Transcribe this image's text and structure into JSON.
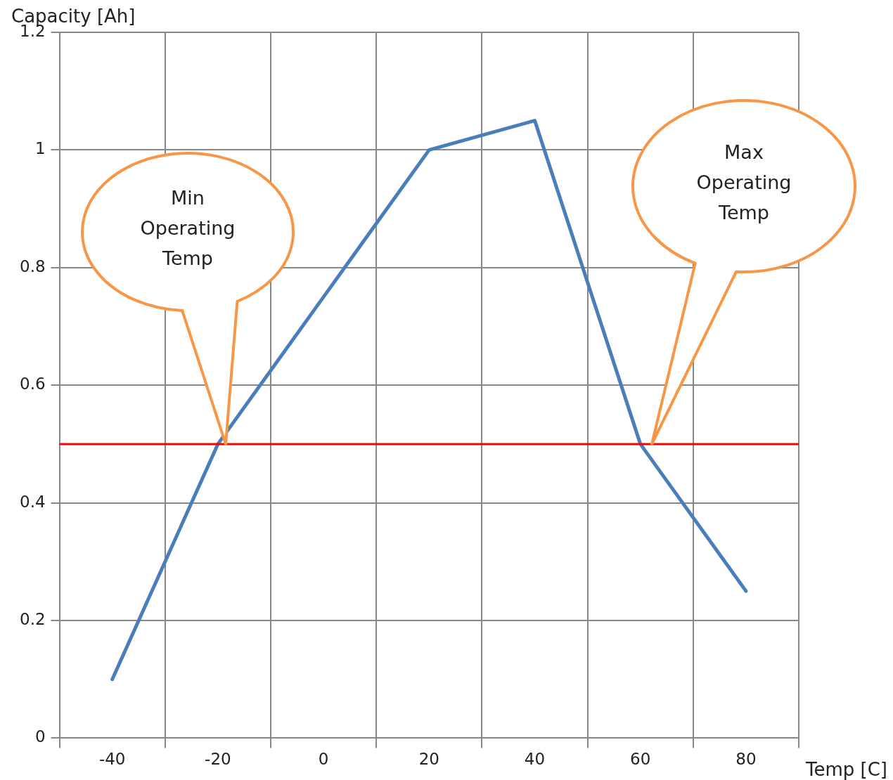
{
  "chart_data": {
    "type": "line",
    "xlabel": "Temp [C]",
    "ylabel": "Capacity [Ah]",
    "categories": [
      "-40",
      "-20",
      "0",
      "20",
      "40",
      "60",
      "80"
    ],
    "series": [
      {
        "color": "#4a7ebb",
        "values": [
          0.1,
          0.5,
          0.75,
          1.0,
          1.05,
          0.5,
          0.25
        ]
      }
    ],
    "ylim": [
      0,
      1.2
    ],
    "yticks": [
      0,
      0.2,
      0.4,
      0.6,
      0.8,
      1,
      1.2
    ],
    "grid": true,
    "legend": false,
    "marker": "none",
    "line_style": "solid",
    "ref_lines": [
      {
        "axis": "y",
        "value": 0.5,
        "color": "#ff0000"
      }
    ],
    "annotations": [
      "Min Operating Temp",
      "Max Operating Temp"
    ]
  }
}
